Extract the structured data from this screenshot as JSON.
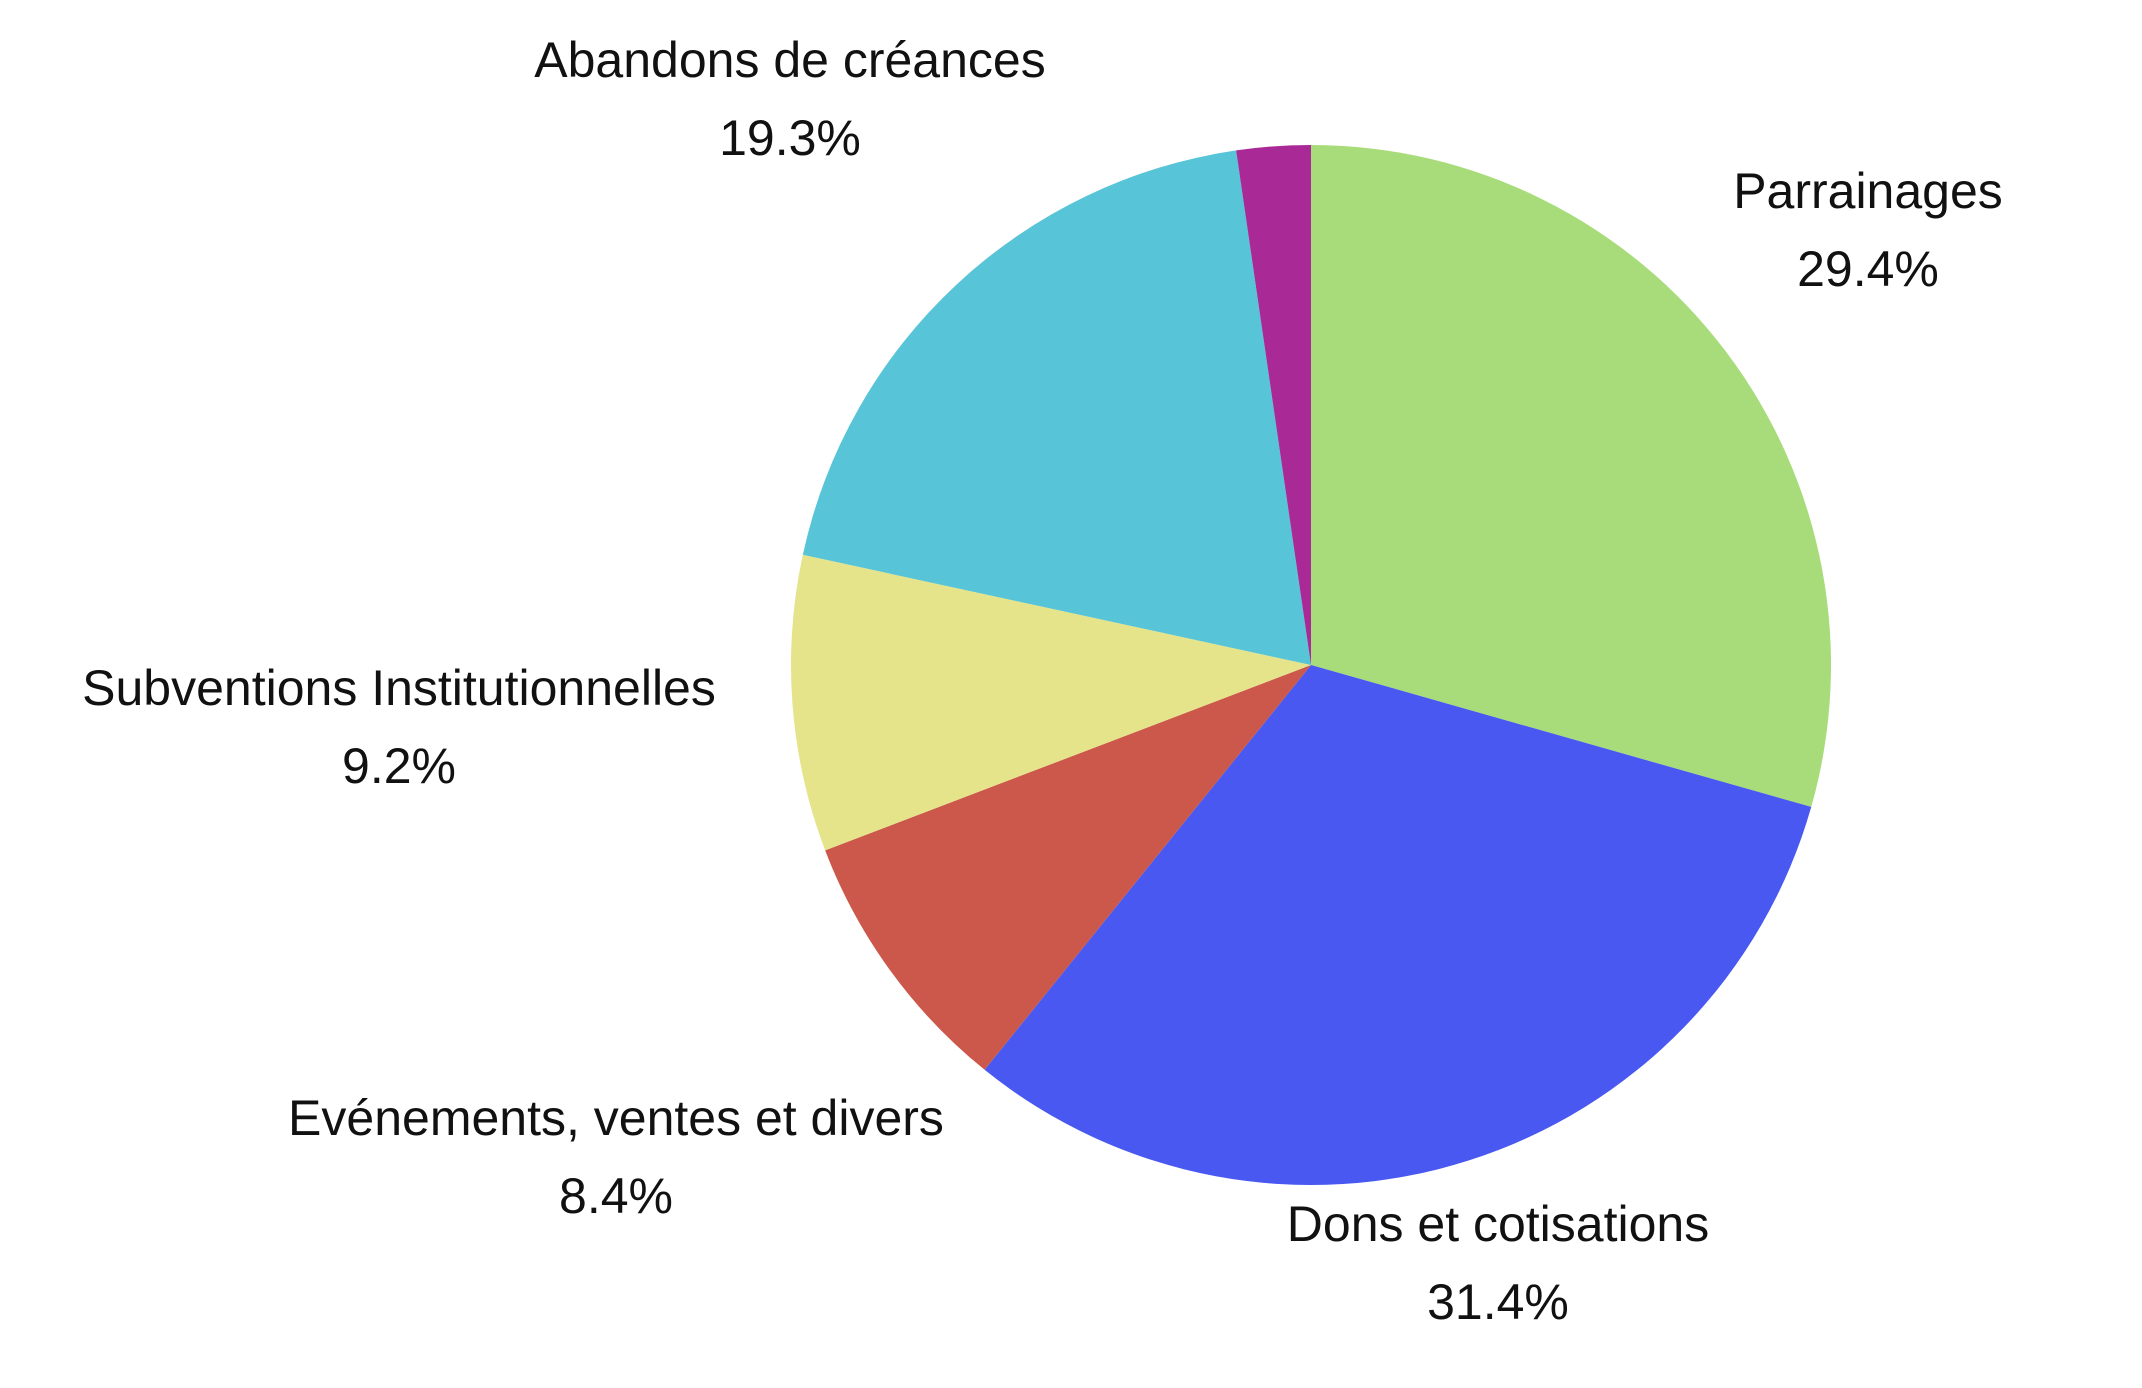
{
  "chart_data": {
    "type": "pie",
    "title": "",
    "slices": [
      {
        "label": "Parrainages",
        "value": 29.4,
        "value_label": "29.4%",
        "color": "#a8dc7a"
      },
      {
        "label": "Dons et cotisations",
        "value": 31.4,
        "value_label": "31.4%",
        "color": "#4858f0"
      },
      {
        "label": "Evénements, ventes et divers",
        "value": 8.4,
        "value_label": "8.4%",
        "color": "#cc584b"
      },
      {
        "label": "Subventions Institutionnelles",
        "value": 9.2,
        "value_label": "9.2%",
        "color": "#e5e48a"
      },
      {
        "label": "Abandons de créances",
        "value": 19.3,
        "value_label": "19.3%",
        "color": "#58c4d7"
      },
      {
        "label": "",
        "value": 2.3,
        "value_label": "",
        "color": "#a92996"
      }
    ],
    "start_angle": "top",
    "direction": "clockwise",
    "legend": "none"
  }
}
